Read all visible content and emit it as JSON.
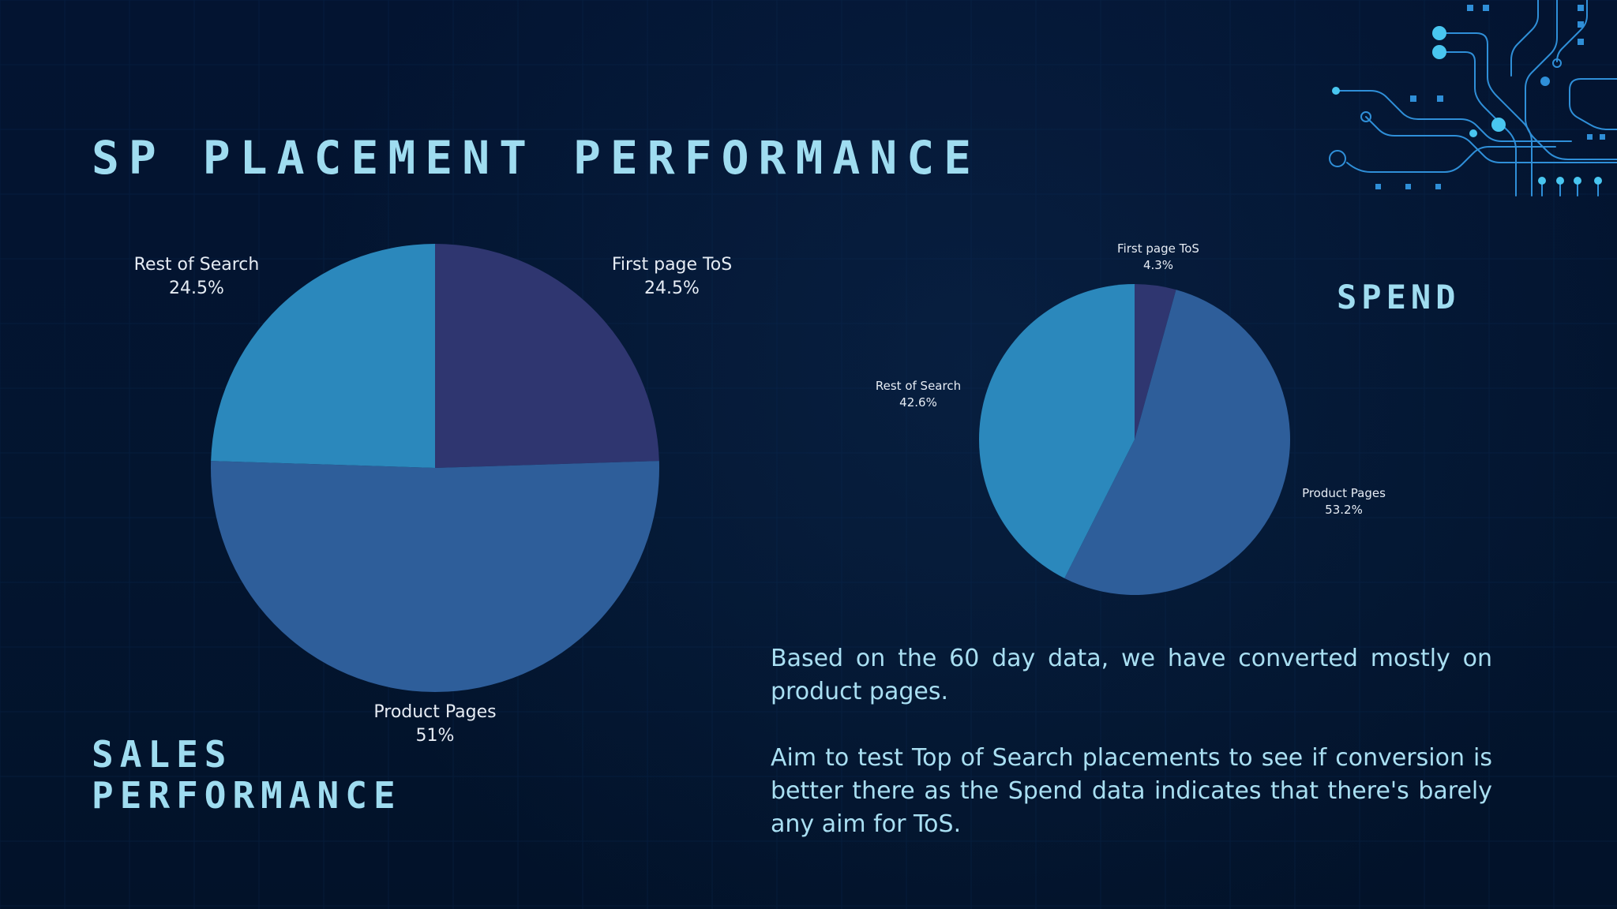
{
  "title": "SP PLACEMENT PERFORMANCE",
  "spend_heading": "SPEND",
  "sales_heading": [
    "SALES",
    "PERFORMANCE"
  ],
  "paragraphs": [
    "Based on the 60 day data, we have converted mostly on product pages.",
    "Aim to test Top of Search placements to see if conversion is better there as the Spend data indicates that there's barely any aim for ToS."
  ],
  "colors": {
    "background": "#041533",
    "accent": "#9fdcf0",
    "first_page_tos": "#2f3670",
    "product_pages": "#2e5e9a",
    "rest_of_search": "#2b88bc"
  },
  "chart_data": [
    {
      "type": "pie",
      "title": "SALES PERFORMANCE",
      "slices": [
        {
          "label": "First page ToS",
          "value": 24.5,
          "display": "24.5%",
          "color": "#2f3670"
        },
        {
          "label": "Product Pages",
          "value": 51,
          "display": "51%",
          "color": "#2e5e9a"
        },
        {
          "label": "Rest of Search",
          "value": 24.5,
          "display": "24.5%",
          "color": "#2b88bc"
        }
      ]
    },
    {
      "type": "pie",
      "title": "SPEND",
      "slices": [
        {
          "label": "First page ToS",
          "value": 4.3,
          "display": "4.3%",
          "color": "#2f3670"
        },
        {
          "label": "Product Pages",
          "value": 53.2,
          "display": "53.2%",
          "color": "#2e5e9a"
        },
        {
          "label": "Rest of Search",
          "value": 42.6,
          "display": "42.6%",
          "color": "#2b88bc"
        }
      ]
    }
  ]
}
